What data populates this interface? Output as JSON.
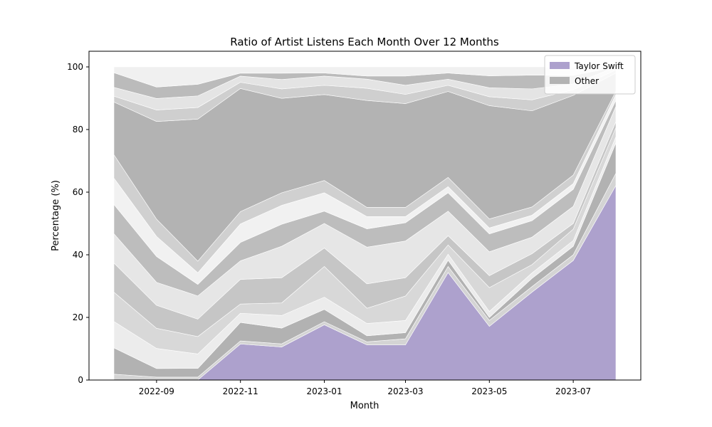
{
  "chart_data": {
    "type": "area",
    "title": "Ratio of Artist Listens Each Month Over 12 Months",
    "xlabel": "Month",
    "ylabel": "Percentage (%)",
    "ylim": [
      0,
      105
    ],
    "x": [
      "2022-08-01",
      "2022-09-01",
      "2022-10-01",
      "2022-11-01",
      "2022-12-01",
      "2023-01-01",
      "2023-02-01",
      "2023-03-01",
      "2023-04-01",
      "2023-05-01",
      "2023-06-01",
      "2023-07-01",
      "2023-08-01"
    ],
    "x_ticks": [
      "2022-09",
      "2022-11",
      "2023-01",
      "2023-03",
      "2023-05",
      "2023-07"
    ],
    "y_ticks": [
      0,
      20,
      40,
      60,
      80,
      100
    ],
    "legend_position": "top-right",
    "series": [
      {
        "name": "Taylor Swift",
        "color": "#ada1cd",
        "values": [
          0,
          0,
          0,
          11.7,
          10.5,
          18,
          11.5,
          11.5,
          35,
          18,
          32,
          42,
          64
        ]
      },
      {
        "color": "#d4d4d4",
        "values": [
          2,
          1,
          1,
          1,
          1,
          1,
          1,
          2,
          2,
          2,
          2,
          2,
          4
        ]
      },
      {
        "color": "#b2b2b2",
        "values": [
          9,
          3,
          3,
          6,
          5,
          4,
          2,
          2,
          2,
          1,
          3,
          3,
          10
        ]
      },
      {
        "color": "#ececec",
        "values": [
          9,
          7,
          5,
          3,
          4,
          4,
          4,
          4,
          2,
          2,
          2,
          2,
          2
        ]
      },
      {
        "color": "#d8d8d8",
        "values": [
          10,
          7,
          6,
          3,
          4,
          10,
          5,
          8,
          3,
          8,
          3,
          4,
          3
        ]
      },
      {
        "color": "#c6c6c6",
        "values": [
          10,
          8,
          6,
          8,
          8,
          6,
          8,
          6,
          3,
          4,
          4,
          2,
          2
        ]
      },
      {
        "color": "#e6e6e6",
        "values": [
          10,
          8,
          8,
          6,
          10,
          8,
          12,
          12,
          8,
          8,
          6,
          6,
          5
        ]
      },
      {
        "color": "#bdbdbd",
        "values": [
          10,
          9,
          4,
          6,
          7,
          4,
          6,
          6,
          6,
          6,
          6,
          6,
          2
        ]
      },
      {
        "color": "#f1f1f1",
        "values": [
          9,
          7,
          4,
          6,
          6,
          6,
          4,
          2,
          2,
          2,
          2,
          2,
          2
        ]
      },
      {
        "color": "#d0d0d0",
        "values": [
          8,
          6,
          4,
          4,
          4,
          4,
          3,
          3,
          3,
          3,
          3,
          3,
          1
        ]
      },
      {
        "name": "Other",
        "color": "#b3b3b3",
        "values": [
          18,
          34,
          49,
          40,
          30,
          28,
          35,
          34,
          28,
          38,
          35,
          28,
          6
        ]
      },
      {
        "color": "#cfcfcf",
        "values": [
          2,
          4,
          4,
          2,
          3,
          3,
          4,
          3,
          2,
          3,
          4,
          2,
          1
        ]
      },
      {
        "color": "#e4e4e4",
        "values": [
          3,
          4,
          4,
          2,
          3,
          3,
          3,
          3,
          2,
          3,
          4,
          2,
          1
        ]
      },
      {
        "color": "#bbbbbb",
        "values": [
          5,
          4,
          4,
          1,
          2,
          1,
          1,
          3,
          2,
          4,
          5,
          3,
          0
        ]
      },
      {
        "color": "#f0f0f0",
        "values": [
          2,
          7,
          6,
          2,
          2,
          2,
          3,
          3,
          2,
          3,
          3,
          3,
          0
        ]
      }
    ]
  }
}
